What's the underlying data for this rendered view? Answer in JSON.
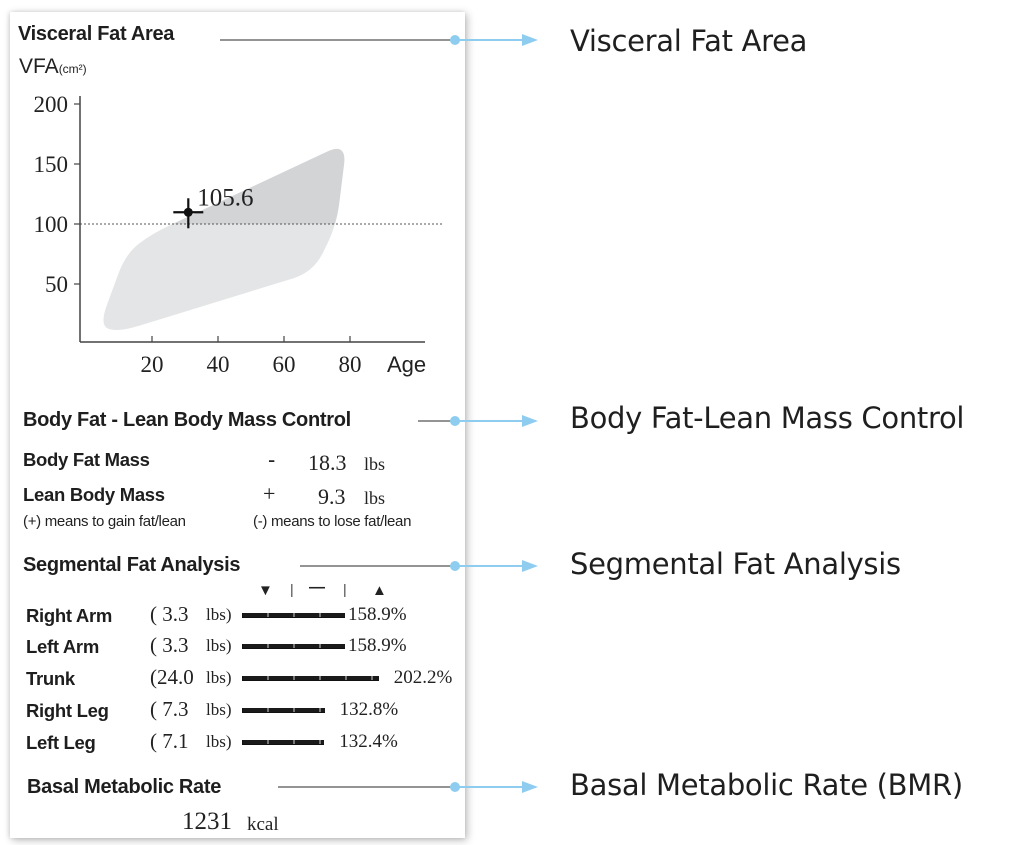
{
  "panel": {
    "visceral": {
      "title": "Visceral Fat Area",
      "unit_main": "VFA",
      "unit_sub": "(cm²)"
    },
    "body_fat_control": {
      "title": "Body Fat - Lean Body Mass Control",
      "rows": [
        {
          "label": "Body Fat Mass",
          "sign": "-",
          "value": "18.3",
          "unit": "lbs"
        },
        {
          "label": "Lean Body Mass",
          "sign": "+",
          "value": "9.3",
          "unit": "lbs"
        }
      ],
      "note_plus": "(+) means to gain fat/lean",
      "note_minus": "(-) means to lose fat/lean"
    },
    "segmental": {
      "title": "Segmental Fat Analysis",
      "indicators": [
        "▼",
        "|",
        "—",
        "|",
        "▲"
      ],
      "rows": [
        {
          "label": "Right Arm",
          "mass": "( 3.3",
          "unit": "lbs)",
          "percent": 158.9,
          "percent_label": "158.9%"
        },
        {
          "label": "Left Arm",
          "mass": "( 3.3",
          "unit": "lbs)",
          "percent": 158.9,
          "percent_label": "158.9%"
        },
        {
          "label": "Trunk",
          "mass": "(24.0",
          "unit": "lbs)",
          "percent": 202.2,
          "percent_label": "202.2%"
        },
        {
          "label": "Right Leg",
          "mass": "( 7.3",
          "unit": "lbs)",
          "percent": 132.8,
          "percent_label": "132.8%"
        },
        {
          "label": "Left Leg",
          "mass": "( 7.1",
          "unit": "lbs)",
          "percent": 132.4,
          "percent_label": "132.4%"
        }
      ]
    },
    "bmr": {
      "title": "Basal Metabolic Rate",
      "value": "1231",
      "unit": "kcal"
    }
  },
  "callouts": [
    {
      "label": "Visceral Fat Area"
    },
    {
      "label": "Body Fat-Lean Mass Control"
    },
    {
      "label": "Segmental Fat Analysis"
    },
    {
      "label": "Basal Metabolic Rate (BMR)"
    }
  ],
  "colors": {
    "callout_line": "#8fcdf0",
    "leader_line": "#555555",
    "region_upper": "#d3d4d6",
    "region_lower": "#e4e5e6",
    "bar": "#1a1a1a"
  },
  "chart_data": {
    "type": "scatter",
    "title": "Visceral Fat Area",
    "ylabel": "VFA(cm²)",
    "xlabel": "Age",
    "xlim": [
      0,
      100
    ],
    "ylim": [
      0,
      210
    ],
    "x_ticks": [
      20,
      40,
      60,
      80
    ],
    "x_tick_labels": [
      "20",
      "40",
      "60",
      "80"
    ],
    "y_ticks": [
      50,
      100,
      150,
      200
    ],
    "y_tick_labels": [
      "50",
      "100",
      "150",
      "200"
    ],
    "reference_line": {
      "y": 100,
      "style": "dotted"
    },
    "normal_region": [
      [
        4,
        15
      ],
      [
        12,
        75
      ],
      [
        20,
        92
      ],
      [
        79,
        168
      ],
      [
        76,
        100
      ],
      [
        69,
        60
      ],
      [
        10,
        10
      ]
    ],
    "series": [
      {
        "name": "VFA",
        "points": [
          {
            "x": 31,
            "y": 105.6,
            "label": "105.6"
          }
        ]
      }
    ],
    "grid": false
  }
}
